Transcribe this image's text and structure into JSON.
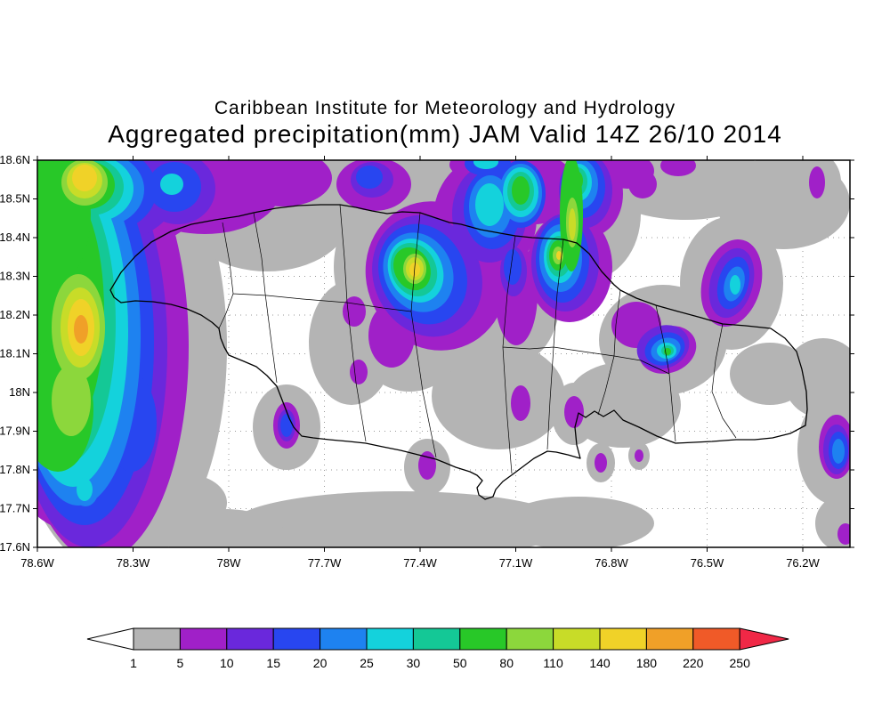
{
  "header": {
    "line1": "Caribbean Institute for Meteorology and Hydrology",
    "line2": "Aggregated precipitation(mm) JAM Valid 14Z 26/10 2014"
  },
  "axes": {
    "lat_ticks": [
      "18.6N",
      "18.5N",
      "18.4N",
      "18.3N",
      "18.2N",
      "18.1N",
      "18N",
      "17.9N",
      "17.8N",
      "17.7N",
      "17.6N"
    ],
    "lon_ticks": [
      "78.6W",
      "78.3W",
      "78W",
      "77.7W",
      "77.4W",
      "77.1W",
      "76.8W",
      "76.5W",
      "76.2W"
    ]
  },
  "colorbar": {
    "labels": [
      "1",
      "5",
      "10",
      "15",
      "20",
      "25",
      "30",
      "50",
      "80",
      "110",
      "140",
      "180",
      "220",
      "250"
    ],
    "colors": [
      "#b4b4b4",
      "#a020c8",
      "#6a28dc",
      "#2846f0",
      "#1e82f0",
      "#14d2dc",
      "#14c896",
      "#28c828",
      "#8cd73c",
      "#c8dc28",
      "#f0d228",
      "#f0a028",
      "#f05a28"
    ],
    "under_color": "#ffffff",
    "over_color": "#f02846"
  },
  "chart_data": {
    "type": "heatmap",
    "title": "Aggregated precipitation(mm) JAM Valid 14Z 26/10 2014",
    "subtitle": "Caribbean Institute for Meteorology and Hydrology",
    "variable": "aggregated precipitation",
    "units": "mm",
    "domain_label": "JAM",
    "valid_time": "14Z 26/10 2014",
    "x_axis": {
      "type": "longitude",
      "ticks": [
        "78.6W",
        "78.3W",
        "78W",
        "77.7W",
        "77.4W",
        "77.1W",
        "76.8W",
        "76.5W",
        "76.2W"
      ],
      "range": "78.6W to about 76.05W",
      "grid": "dotted"
    },
    "y_axis": {
      "type": "latitude",
      "ticks": [
        "18.6N",
        "18.5N",
        "18.4N",
        "18.3N",
        "18.2N",
        "18.1N",
        "18N",
        "17.9N",
        "17.8N",
        "17.7N",
        "17.6N"
      ],
      "range": "17.6N to 18.6N",
      "grid": "dotted"
    },
    "levels_mm": [
      1,
      5,
      10,
      15,
      20,
      25,
      30,
      50,
      80,
      110,
      140,
      180,
      220,
      250
    ],
    "palette": [
      "#b4b4b4",
      "#a020c8",
      "#6a28dc",
      "#2846f0",
      "#1e82f0",
      "#14d2dc",
      "#14c896",
      "#28c828",
      "#8cd73c",
      "#c8dc28",
      "#f0d228",
      "#f0a028",
      "#f05a28"
    ],
    "under_level_color": "#ffffff",
    "over_level_color": "#f02846",
    "basemap": "Jamaica coastline with parish boundaries",
    "precip_maxima": [
      {
        "lon": "78.45W",
        "lat": "18.17N",
        "max_range_mm": "180-220",
        "note": "core of large offshore system west of Jamaica"
      },
      {
        "lon": "78.45W",
        "lat": "18.55N",
        "max_range_mm": "140-180",
        "note": "northwest corner of domain"
      },
      {
        "lon": "77.41W",
        "lat": "18.32N",
        "max_range_mm": "140-180",
        "note": "band over north-central Jamaica"
      },
      {
        "lon": "76.96W",
        "lat": "18.35N",
        "max_range_mm": "140-180",
        "note": "cell near north coast / Annotto Bay"
      },
      {
        "lon": "76.63W",
        "lat": "18.11N",
        "max_range_mm": "50-80",
        "note": "cell over eastern interior (Blue Mountains)"
      },
      {
        "lon": "76.42W",
        "lat": "18.28N",
        "max_range_mm": "25-30",
        "note": "cell northeast of the island"
      },
      {
        "lon": "76.09W",
        "lat": "17.85N",
        "max_range_mm": "25-30",
        "note": "cell at eastern edge of domain"
      },
      {
        "lon": "77.82W",
        "lat": "17.91N",
        "max_range_mm": "15-20",
        "note": "south-coast cell near Black River"
      }
    ]
  }
}
